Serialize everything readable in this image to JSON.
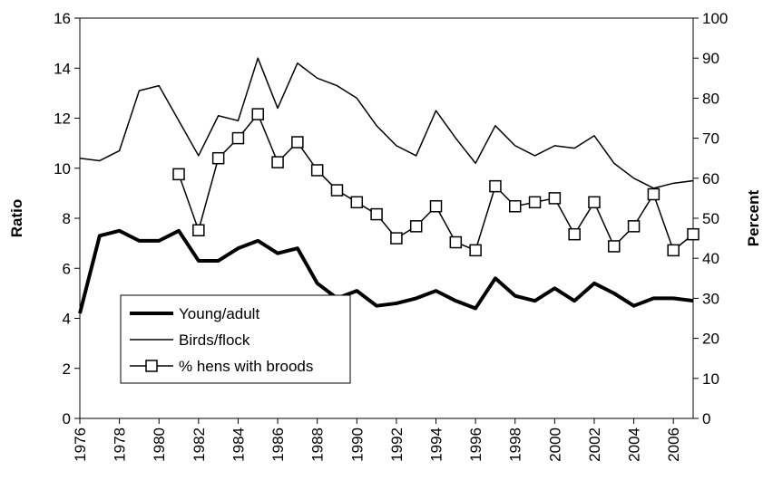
{
  "chart_data": {
    "type": "line",
    "y_label": "Ratio",
    "y2_label": "Percent",
    "x": [
      1976,
      1977,
      1978,
      1979,
      1980,
      1981,
      1982,
      1983,
      1984,
      1985,
      1986,
      1987,
      1988,
      1989,
      1990,
      1991,
      1992,
      1993,
      1994,
      1995,
      1996,
      1997,
      1998,
      1999,
      2000,
      2001,
      2002,
      2003,
      2004,
      2005,
      2006,
      2007
    ],
    "xlim": [
      1976,
      2007
    ],
    "xticks": [
      1976,
      1978,
      1980,
      1982,
      1984,
      1986,
      1988,
      1990,
      1992,
      1994,
      1996,
      1998,
      2000,
      2002,
      2004,
      2006
    ],
    "ylim": [
      0,
      16
    ],
    "yticks": [
      0,
      2,
      4,
      6,
      8,
      10,
      12,
      14,
      16
    ],
    "y2lim": [
      0,
      100
    ],
    "y2ticks": [
      0,
      10,
      20,
      30,
      40,
      50,
      60,
      70,
      80,
      90,
      100
    ],
    "series": [
      {
        "name": "Young/adult",
        "color": "#000000",
        "style": "thick",
        "values": [
          4.2,
          7.3,
          7.5,
          7.1,
          7.1,
          7.5,
          6.3,
          6.3,
          6.8,
          7.1,
          6.6,
          6.8,
          5.4,
          4.8,
          5.1,
          4.5,
          4.6,
          4.8,
          5.1,
          4.7,
          4.4,
          5.6,
          4.9,
          4.7,
          5.2,
          4.7,
          5.4,
          5.0,
          4.5,
          4.8,
          4.8,
          4.7
        ]
      },
      {
        "name": "Birds/flock",
        "color": "#000000",
        "style": "thin",
        "values": [
          10.4,
          10.3,
          10.7,
          13.1,
          13.3,
          11.9,
          10.5,
          12.1,
          11.9,
          14.4,
          12.4,
          14.2,
          13.6,
          13.3,
          12.8,
          11.7,
          10.9,
          10.5,
          12.3,
          11.2,
          10.2,
          11.7,
          10.9,
          10.5,
          10.9,
          10.8,
          11.3,
          10.2,
          9.6,
          9.2,
          9.4,
          9.5
        ]
      },
      {
        "name": "% hens with broods",
        "color": "#000000",
        "style": "square",
        "axis": "y2",
        "values": [
          null,
          null,
          null,
          null,
          null,
          61,
          47,
          65,
          70,
          76,
          64,
          69,
          62,
          57,
          54,
          51,
          45,
          48,
          53,
          44,
          42,
          58,
          53,
          54,
          55,
          46,
          54,
          43,
          48,
          56,
          42,
          46
        ]
      }
    ]
  }
}
